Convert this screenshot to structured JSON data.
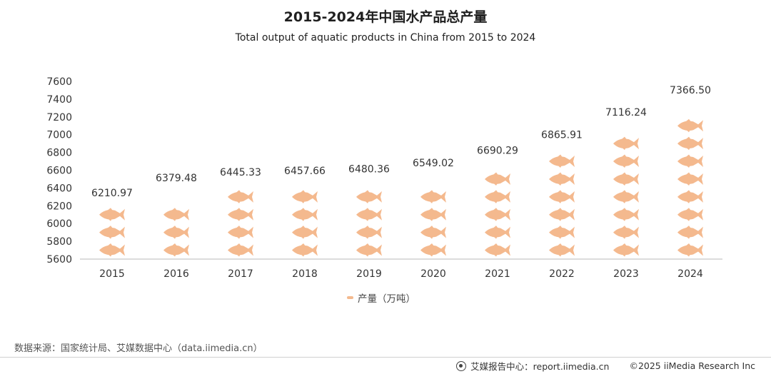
{
  "header": {
    "title": "2015-2024年中国水产品总产量",
    "subtitle": "Total output of aquatic products in China from 2015 to 2024"
  },
  "colors": {
    "fish": "#f4b98e",
    "axis": "#b9b9b9",
    "text": "#333333"
  },
  "legend": {
    "label": "产量（万吨）",
    "icon": "fish-icon"
  },
  "chart_data": {
    "type": "bar",
    "style": "pictograph",
    "categories": [
      "2015",
      "2016",
      "2017",
      "2018",
      "2019",
      "2020",
      "2021",
      "2022",
      "2023",
      "2024"
    ],
    "values": [
      6210.97,
      6379.48,
      6445.33,
      6457.66,
      6480.36,
      6549.02,
      6690.29,
      6865.91,
      7116.24,
      7366.5
    ],
    "value_labels": [
      "6210.97",
      "6379.48",
      "6445.33",
      "6457.66",
      "6480.36",
      "6549.02",
      "6690.29",
      "6865.91",
      "7116.24",
      "7366.50"
    ],
    "ylim": [
      5600,
      7600
    ],
    "yticks": [
      5600,
      5800,
      6000,
      6200,
      6400,
      6600,
      6800,
      7000,
      7200,
      7400,
      7600
    ],
    "grid": false,
    "legend_position": "bottom-center",
    "series": [
      {
        "name": "产量（万吨）"
      }
    ]
  },
  "footer": {
    "source": "数据来源：国家统计局、艾媒数据中心（data.iimedia.cn）",
    "report": "艾媒报告中心：report.iimedia.cn",
    "copyright": "©2025  iiMedia Research  Inc"
  }
}
